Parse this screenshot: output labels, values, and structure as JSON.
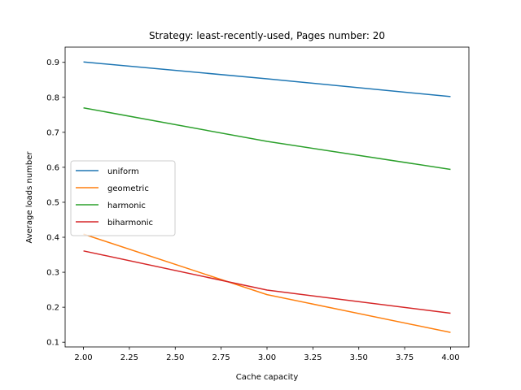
{
  "chart_data": {
    "type": "line",
    "title": "Strategy: least-recently-used, Pages number: 20",
    "xlabel": "Cache capacity",
    "ylabel": "Average loads number",
    "x": [
      2.0,
      3.0,
      4.0
    ],
    "xlim": [
      1.9,
      4.1
    ],
    "ylim": [
      0.0865,
      0.9435
    ],
    "xticks": [
      "2.00",
      "2.25",
      "2.50",
      "2.75",
      "3.00",
      "3.25",
      "3.50",
      "3.75",
      "4.00"
    ],
    "yticks": [
      "0.1",
      "0.2",
      "0.3",
      "0.4",
      "0.5",
      "0.6",
      "0.7",
      "0.8",
      "0.9"
    ],
    "grid": false,
    "legend_position": "center-left",
    "series": [
      {
        "name": "uniform",
        "color": "#1f77b4",
        "values": [
          0.901,
          0.853,
          0.802
        ]
      },
      {
        "name": "geometric",
        "color": "#ff7f0e",
        "values": [
          0.409,
          0.236,
          0.128
        ]
      },
      {
        "name": "harmonic",
        "color": "#2ca02c",
        "values": [
          0.77,
          0.674,
          0.594
        ]
      },
      {
        "name": "biharmonic",
        "color": "#d62728",
        "values": [
          0.361,
          0.249,
          0.183
        ]
      }
    ]
  }
}
